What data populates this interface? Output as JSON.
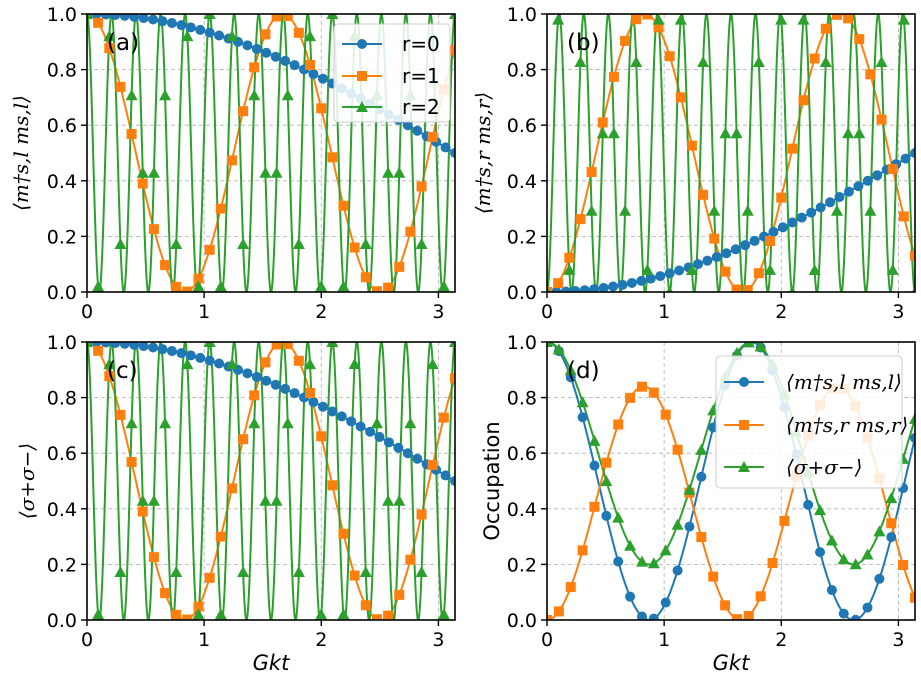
{
  "chart_data": [
    {
      "panel": "(a)",
      "type": "line",
      "ylabel": "⟨m†s,l ms,l⟩",
      "xlabel": "",
      "xlim": [
        0,
        3.1416
      ],
      "ylim": [
        0,
        1
      ],
      "xticks": [
        "0",
        "1",
        "2",
        "3"
      ],
      "yticks": [
        "0.0",
        "0.2",
        "0.4",
        "0.6",
        "0.8",
        "1.0"
      ],
      "legend": {
        "location": "top-right",
        "entries": [
          "r=0",
          "r=1",
          "r=2"
        ]
      },
      "series": [
        {
          "name": "r=0",
          "function": "cos2",
          "frequency": 0.25,
          "offset": 0,
          "amplitude": 1,
          "marker": "circle",
          "marker_count": 40,
          "color": "#1f77b4"
        },
        {
          "name": "r=1",
          "function": "cos2",
          "frequency": 1.8824,
          "offset": 0,
          "amplitude": 1,
          "marker": "square",
          "marker_count": 34,
          "color": "#ff7f0e"
        },
        {
          "name": "r=2",
          "function": "cos2",
          "frequency": 15.0,
          "offset": 0,
          "amplitude": 1,
          "marker": "triangle",
          "marker_count": 34,
          "color": "#2ca02c"
        }
      ]
    },
    {
      "panel": "(b)",
      "type": "line",
      "ylabel": "⟨m†s,r ms,r⟩",
      "xlabel": "",
      "xlim": [
        0,
        3.1416
      ],
      "ylim": [
        0,
        1
      ],
      "xticks": [
        "0",
        "1",
        "2",
        "3"
      ],
      "yticks": [
        "0.0",
        "0.2",
        "0.4",
        "0.6",
        "0.8",
        "1.0"
      ],
      "series": [
        {
          "name": "r=0",
          "function": "sin2",
          "frequency": 0.25,
          "offset": 0,
          "amplitude": 1,
          "marker": "circle",
          "marker_count": 40,
          "color": "#1f77b4"
        },
        {
          "name": "r=1",
          "function": "sin2",
          "frequency": 1.8824,
          "offset": 0,
          "amplitude": 1,
          "marker": "square",
          "marker_count": 34,
          "color": "#ff7f0e"
        },
        {
          "name": "r=2",
          "function": "sin2",
          "frequency": 15.0,
          "offset": 0,
          "amplitude": 1,
          "marker": "triangle",
          "marker_count": 34,
          "color": "#2ca02c"
        }
      ]
    },
    {
      "panel": "(c)",
      "type": "line",
      "ylabel": "⟨σ+σ−⟩",
      "xlabel": "Gkt",
      "xlim": [
        0,
        3.1416
      ],
      "ylim": [
        0,
        1
      ],
      "xticks": [
        "0",
        "1",
        "2",
        "3"
      ],
      "yticks": [
        "0.0",
        "0.2",
        "0.4",
        "0.6",
        "0.8",
        "1.0"
      ],
      "series": [
        {
          "name": "r=0",
          "function": "cos2",
          "frequency": 0.25,
          "offset": 0,
          "amplitude": 1,
          "marker": "circle",
          "marker_count": 40,
          "color": "#1f77b4"
        },
        {
          "name": "r=1",
          "function": "cos2",
          "frequency": 1.8824,
          "offset": 0,
          "amplitude": 1,
          "marker": "square",
          "marker_count": 34,
          "color": "#ff7f0e"
        },
        {
          "name": "r=2",
          "function": "cos2",
          "frequency": 15.0,
          "offset": 0,
          "amplitude": 1,
          "marker": "triangle",
          "marker_count": 34,
          "color": "#2ca02c"
        }
      ]
    },
    {
      "panel": "(d)",
      "type": "line",
      "ylabel": "Occupation",
      "xlabel": "Gkt",
      "xlim": [
        0,
        3.1416
      ],
      "ylim": [
        0,
        1
      ],
      "xticks": [
        "0",
        "1",
        "2",
        "3"
      ],
      "yticks": [
        "0.0",
        "0.2",
        "0.4",
        "0.6",
        "0.8",
        "1.0"
      ],
      "legend": {
        "location": "top-right",
        "entries": [
          "⟨m†s,l ms,l⟩",
          "⟨m†s,r ms,r⟩",
          "⟨σ+σ−⟩"
        ]
      },
      "series": [
        {
          "name": "⟨m†s,l ms,l⟩",
          "function": "cos2",
          "frequency": 1.8,
          "offset": 0,
          "amplitude": 1,
          "marker": "circle",
          "marker_count": 32,
          "color": "#1f77b4"
        },
        {
          "name": "⟨m†s,r ms,r⟩",
          "function": "sin2",
          "frequency": 1.9,
          "offset": 0,
          "amplitude": 0.84,
          "marker": "square",
          "marker_count": 32,
          "color": "#ff7f0e"
        },
        {
          "name": "⟨σ+σ−⟩",
          "function": "cos2",
          "frequency": 1.8,
          "offset": 0.2,
          "amplitude": 0.8,
          "marker": "triangle",
          "marker_count": 32,
          "color": "#2ca02c"
        }
      ]
    }
  ]
}
